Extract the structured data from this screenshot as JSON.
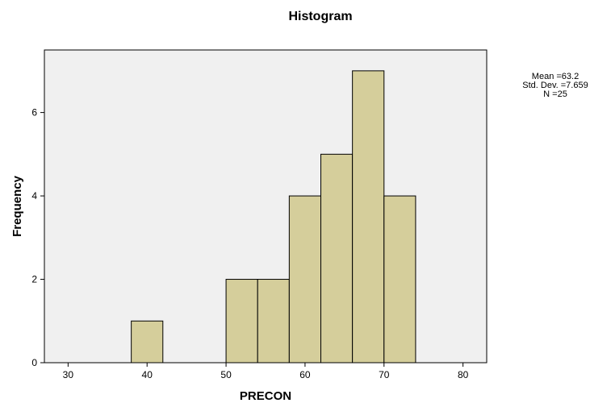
{
  "chart_data": {
    "type": "bar",
    "title": "Histogram",
    "xlabel": "PRECON",
    "ylabel": "Frequency",
    "xlim": [
      27,
      83
    ],
    "ylim": [
      0,
      7.5
    ],
    "x_ticks": [
      30,
      40,
      50,
      60,
      70,
      80
    ],
    "y_ticks": [
      0,
      2,
      4,
      6
    ],
    "bins": [
      {
        "start": 38,
        "end": 42,
        "count": 1
      },
      {
        "start": 50,
        "end": 54,
        "count": 2
      },
      {
        "start": 54,
        "end": 58,
        "count": 2
      },
      {
        "start": 58,
        "end": 62,
        "count": 4
      },
      {
        "start": 62,
        "end": 66,
        "count": 5
      },
      {
        "start": 66,
        "end": 70,
        "count": 7
      },
      {
        "start": 70,
        "end": 74,
        "count": 4
      }
    ],
    "stats": {
      "mean": "Mean =63.2",
      "std_dev": "Std. Dev. =7.659",
      "n": "N =25"
    },
    "colors": {
      "bar_fill": "#d5ce9b",
      "plot_background": "#f0f0f0",
      "bar_stroke": "#000000"
    }
  }
}
